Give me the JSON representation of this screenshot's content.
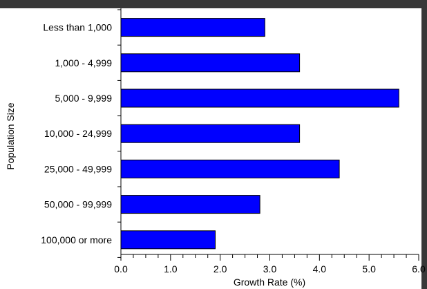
{
  "chart_data": {
    "type": "bar",
    "orientation": "horizontal",
    "categories": [
      "Less than 1,000",
      "1,000 - 4,999",
      "5,000 - 9,999",
      "10,000 - 24,999",
      "25,000 - 49,999",
      "50,000 - 99,999",
      "100,000 or more"
    ],
    "values": [
      2.9,
      3.6,
      5.6,
      3.6,
      4.4,
      2.8,
      1.9
    ],
    "xlabel": "Growth Rate (%)",
    "ylabel": "Population Size",
    "xlim": [
      0,
      6
    ],
    "xticks": [
      "0.0",
      "1.0",
      "2.0",
      "3.0",
      "4.0",
      "5.0",
      "6.0"
    ],
    "grid": false,
    "colors": {
      "bar_fill": "#0000ff",
      "bar_stroke": "#000000",
      "background": "#ffffff",
      "frame": "#383838"
    }
  }
}
